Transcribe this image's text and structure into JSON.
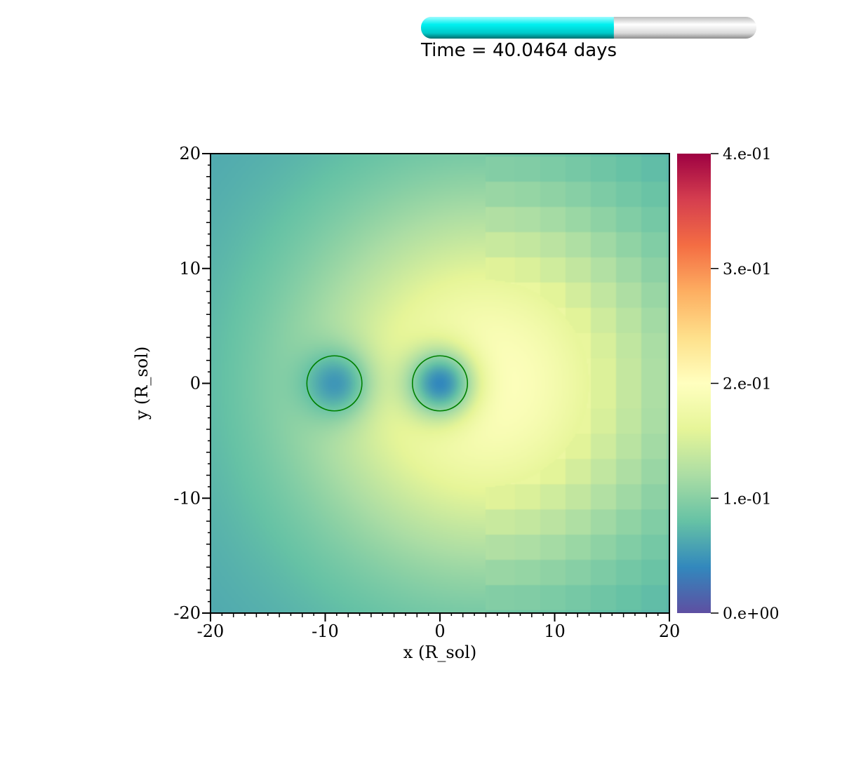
{
  "time_bar": {
    "label": "Time = 40.0464 days",
    "progress": 0.575,
    "fill_color": "#00e5e5",
    "track_color": "#d8d8d8"
  },
  "chart_data": {
    "type": "heatmap",
    "title": "",
    "xlabel": "x (R_sol)",
    "ylabel": "y (R_sol)",
    "xlim": [
      -20,
      20
    ],
    "ylim": [
      -20,
      20
    ],
    "x_ticks": [
      -20,
      -10,
      0,
      10,
      20
    ],
    "x_tick_labels": [
      "-20",
      "-10",
      "0",
      "10",
      "20"
    ],
    "y_ticks": [
      -20,
      -10,
      0,
      10,
      20
    ],
    "y_tick_labels": [
      "-20",
      "-10",
      "0",
      "10",
      "20"
    ],
    "colorbar": {
      "range": [
        0,
        0.4
      ],
      "colormap": "Spectral_r",
      "ticks": [
        0,
        0.1,
        0.2,
        0.3,
        0.4
      ],
      "tick_labels": [
        "0.e+00",
        "1.e-01",
        "2.e-01",
        "3.e-01",
        "4.e-01"
      ]
    },
    "circles": [
      {
        "x": -9.2,
        "y": 0,
        "r": 2.4,
        "color": "#008000"
      },
      {
        "x": 0,
        "y": 0,
        "r": 2.4,
        "color": "#008000"
      }
    ],
    "field": {
      "peak_value": 0.2,
      "peak_center": [
        4,
        0
      ],
      "sources": [
        {
          "x": -9.2,
          "y": 0,
          "min_value": 0.05
        },
        {
          "x": 0,
          "y": 0,
          "min_value": 0.04
        }
      ],
      "edge_value": 0.06,
      "coarse_region_x_from": 4,
      "coarse_region_cell": 2.2
    },
    "grid": false
  }
}
